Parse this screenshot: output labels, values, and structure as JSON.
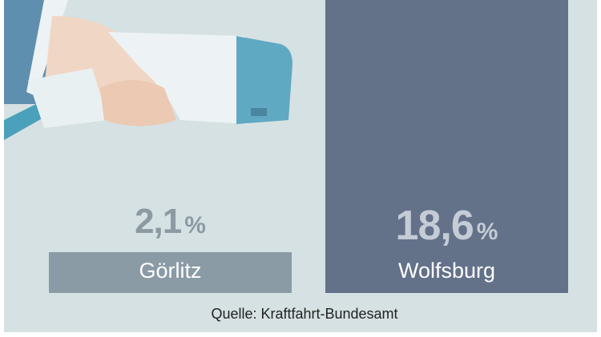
{
  "chart_data": {
    "type": "bar",
    "title": "",
    "categories": [
      "Görlitz",
      "Wolfsburg"
    ],
    "values": [
      2.1,
      18.6
    ],
    "value_labels": [
      "2,1",
      "18,6"
    ],
    "unit": "%",
    "ylim": [
      0,
      18.6
    ],
    "colors": [
      "#8a9ba6",
      "#637189"
    ],
    "value_label_colors": [
      "#8d9aa4",
      "#c5ccd6"
    ],
    "source": "Quelle: Kraftfahrt-Bundesamt"
  }
}
